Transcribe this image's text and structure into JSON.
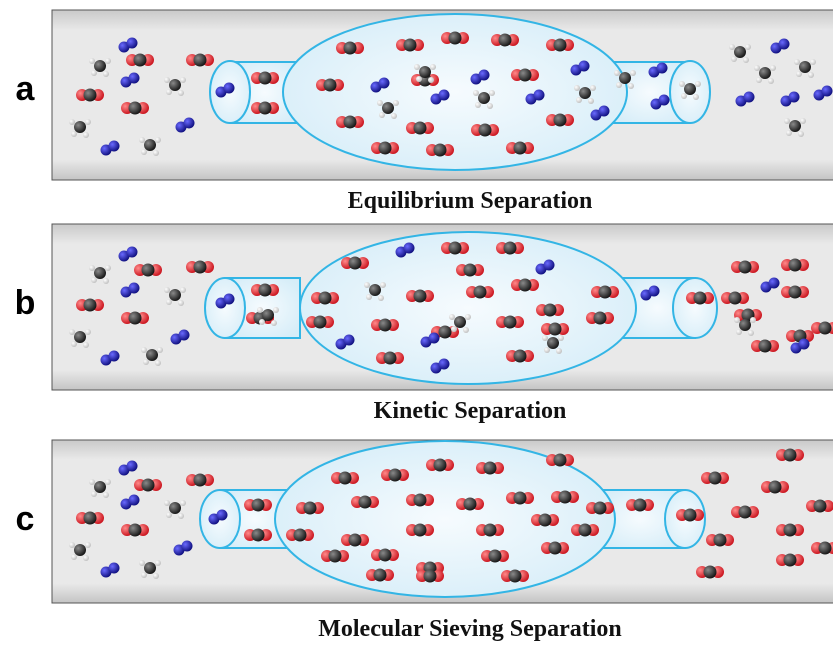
{
  "panels": [
    {
      "letter": "a",
      "caption": "Equilibrium Separation"
    },
    {
      "letter": "b",
      "caption": "Kinetic Separation"
    },
    {
      "letter": "c",
      "caption": "Molecular Sieving Separation"
    }
  ],
  "legend_colors": {
    "carbon": "#2b2b2b",
    "oxygen": "#e8202a",
    "nitrogen": "#1a1aa8",
    "hydrogen": "#f2f2f2",
    "membrane_outline": "#33b5e5",
    "membrane_fill": "#e6f4fb",
    "channel_fill": "#d8d8d8"
  },
  "molecule_types": [
    "CO2",
    "N2",
    "CH4"
  ]
}
